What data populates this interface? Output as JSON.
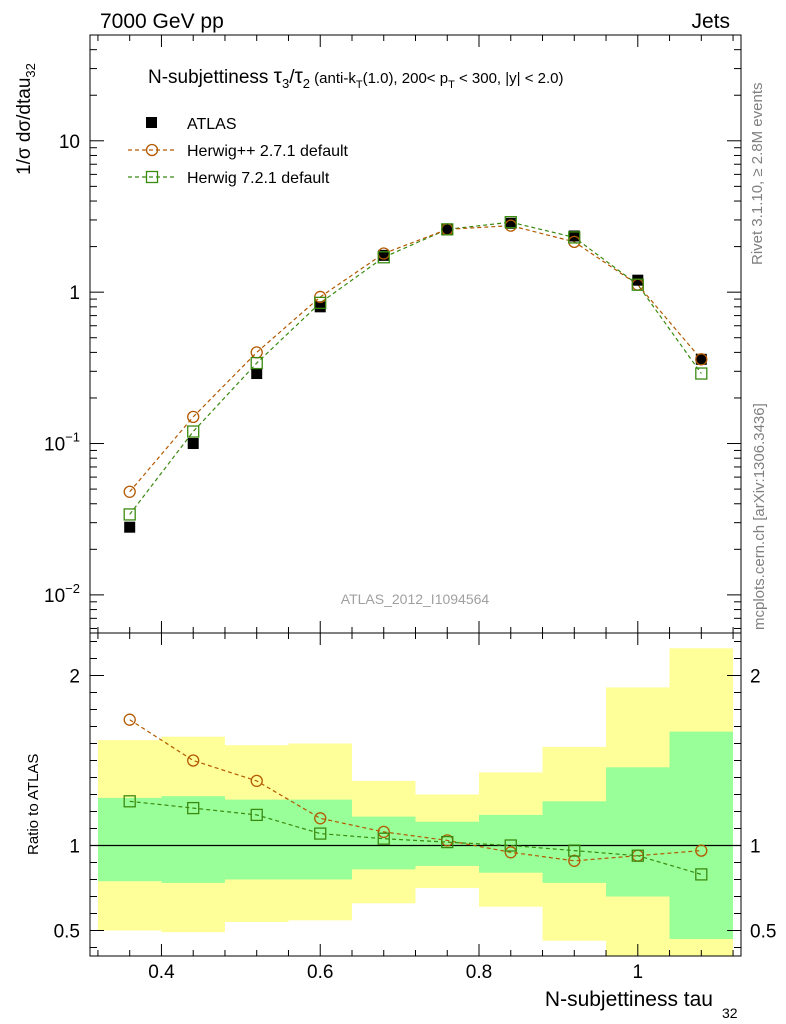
{
  "header": {
    "left": "7000 GeV pp",
    "right": "Jets"
  },
  "title": {
    "prefix": "N-subjettiness ",
    "tau": "τ",
    "sub3": "3",
    "slash": "/",
    "sub2": "2",
    "mid": " (anti-k",
    "subT": "T",
    "rest1": "(1.0), 200< p",
    "rest2": " < 300, |y| < 2.0)"
  },
  "side_text": {
    "rivet": "Rivet 3.1.10, ≥ 2.8M events",
    "mcplots": "mcplots.cern.ch [arXiv:1306.3436]"
  },
  "watermark": "ATLAS_2012_I1094564",
  "ylabel_main": {
    "text": "1/σ dσ/dtau",
    "sub": "32"
  },
  "ylabel_ratio": "Ratio to ATLAS",
  "xlabel": {
    "text": "N-subjettiness tau",
    "sub": "32"
  },
  "legend": [
    {
      "label": "ATLAS"
    },
    {
      "label": "Herwig++ 2.7.1 default"
    },
    {
      "label": "Herwig 7.2.1 default"
    }
  ],
  "colors": {
    "data": "#000000",
    "herwigpp": "#b35900",
    "herwig7": "#3a8a10",
    "band_inner": "#99ff99",
    "band_outer": "#ffff99"
  },
  "chart_data": {
    "type": "scatter",
    "xlim": [
      0.31,
      1.13
    ],
    "main_ylim": [
      0.0056,
      50
    ],
    "main_yscale": "log",
    "ratio_ylim": [
      0.35,
      2.25
    ],
    "x_ticks": [
      "0.4",
      "0.6",
      "0.8",
      "1"
    ],
    "x_tick_values": [
      0.4,
      0.6,
      0.8,
      1.0
    ],
    "main_y_ticks": [
      {
        "value": 10,
        "label": "10"
      },
      {
        "value": 1,
        "label": "1"
      },
      {
        "value": 0.1,
        "label": "10",
        "exp": "−1"
      },
      {
        "value": 0.01,
        "label": "10",
        "exp": "−2"
      }
    ],
    "ratio_y_ticks": [
      {
        "value": 2,
        "label": "2"
      },
      {
        "value": 1,
        "label": "1"
      },
      {
        "value": 0.5,
        "label": "0.5"
      }
    ],
    "bin_edges": [
      0.32,
      0.4,
      0.48,
      0.56,
      0.64,
      0.72,
      0.8,
      0.88,
      0.96,
      1.04,
      1.12
    ],
    "x": [
      0.36,
      0.44,
      0.52,
      0.6,
      0.68,
      0.76,
      0.84,
      0.92,
      1.0,
      1.08
    ],
    "series": [
      {
        "name": "ATLAS",
        "values": [
          0.028,
          0.1,
          0.29,
          0.8,
          1.75,
          2.6,
          2.85,
          2.35,
          1.2,
          0.36
        ]
      },
      {
        "name": "Herwig++ 2.7.1 default",
        "values": [
          0.048,
          0.15,
          0.4,
          0.93,
          1.8,
          2.6,
          2.75,
          2.15,
          1.12,
          0.36
        ]
      },
      {
        "name": "Herwig 7.2.1 default",
        "values": [
          0.034,
          0.12,
          0.34,
          0.85,
          1.7,
          2.6,
          2.9,
          2.3,
          1.12,
          0.29
        ]
      }
    ],
    "ratio_series": [
      {
        "name": "Herwig++ 2.7.1 default",
        "values": [
          1.74,
          1.5,
          1.38,
          1.16,
          1.08,
          1.03,
          0.96,
          0.91,
          0.94,
          0.97
        ]
      },
      {
        "name": "Herwig 7.2.1 default",
        "values": [
          1.26,
          1.22,
          1.18,
          1.07,
          1.04,
          1.02,
          1.0,
          0.97,
          0.94,
          0.83
        ]
      }
    ],
    "band_inner": [
      {
        "lo": 0.79,
        "hi": 1.28
      },
      {
        "lo": 0.78,
        "hi": 1.29
      },
      {
        "lo": 0.8,
        "hi": 1.27
      },
      {
        "lo": 0.8,
        "hi": 1.27
      },
      {
        "lo": 0.86,
        "hi": 1.17
      },
      {
        "lo": 0.88,
        "hi": 1.14
      },
      {
        "lo": 0.84,
        "hi": 1.18
      },
      {
        "lo": 0.78,
        "hi": 1.26
      },
      {
        "lo": 0.7,
        "hi": 1.46
      },
      {
        "lo": 0.45,
        "hi": 1.67
      }
    ],
    "band_outer": [
      {
        "lo": 0.5,
        "hi": 1.62
      },
      {
        "lo": 0.49,
        "hi": 1.64
      },
      {
        "lo": 0.55,
        "hi": 1.59
      },
      {
        "lo": 0.56,
        "hi": 1.6
      },
      {
        "lo": 0.66,
        "hi": 1.38
      },
      {
        "lo": 0.75,
        "hi": 1.3
      },
      {
        "lo": 0.64,
        "hi": 1.43
      },
      {
        "lo": 0.44,
        "hi": 1.58
      },
      {
        "lo": 0.35,
        "hi": 1.93
      },
      {
        "lo": 0.35,
        "hi": 2.16
      }
    ]
  }
}
